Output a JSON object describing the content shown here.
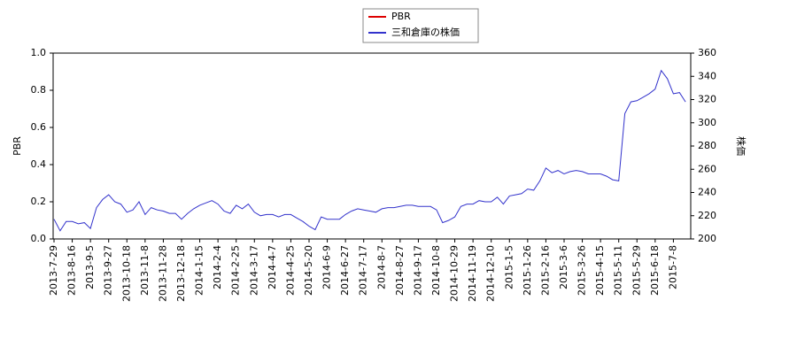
{
  "chart_data": {
    "type": "line",
    "categories": [
      "2013-7-29",
      null,
      null,
      "2013-8-16",
      null,
      null,
      "2013-9-5",
      null,
      null,
      "2013-9-27",
      null,
      null,
      "2013-10-18",
      null,
      null,
      "2013-11-8",
      null,
      null,
      "2013-11-28",
      null,
      null,
      "2013-12-18",
      null,
      null,
      "2014-1-15",
      null,
      null,
      "2014-2-4",
      null,
      null,
      "2014-2-25",
      null,
      null,
      "2014-3-17",
      null,
      null,
      "2014-4-7",
      null,
      null,
      "2014-4-25",
      null,
      null,
      "2014-5-20",
      null,
      null,
      "2014-6-9",
      null,
      null,
      "2014-6-27",
      null,
      null,
      "2014-7-17",
      null,
      null,
      "2014-8-7",
      null,
      null,
      "2014-8-27",
      null,
      null,
      "2014-9-17",
      null,
      null,
      "2014-10-8",
      null,
      null,
      "2014-10-29",
      null,
      null,
      "2014-11-19",
      null,
      null,
      "2014-12-10",
      null,
      null,
      "2015-1-5",
      null,
      null,
      "2015-1-26",
      null,
      null,
      "2015-2-16",
      null,
      null,
      "2015-3-6",
      null,
      null,
      "2015-3-26",
      null,
      null,
      "2015-4-15",
      null,
      null,
      "2015-5-11",
      null,
      null,
      "2015-5-29",
      null,
      null,
      "2015-6-18",
      null,
      null,
      "2015-7-8",
      null,
      null
    ],
    "series": [
      {
        "name": "PBR",
        "color": "#dd0000",
        "values": [
          null,
          null,
          null,
          null,
          null,
          null,
          null,
          null,
          null,
          null,
          null,
          null,
          null,
          null,
          null,
          null,
          null,
          null,
          null,
          null,
          null,
          null,
          null,
          null,
          null,
          null,
          null,
          null,
          null,
          null,
          null,
          null,
          null,
          null,
          null,
          null,
          null,
          null,
          null,
          null,
          null,
          null,
          null,
          null,
          null,
          null,
          null,
          null,
          null,
          null,
          null,
          null,
          null,
          null,
          null,
          null,
          null,
          null,
          null,
          null,
          null,
          null,
          null,
          null,
          null,
          null,
          null,
          null,
          null,
          null,
          null,
          null,
          null,
          null,
          null,
          null,
          null,
          null,
          null,
          null,
          null,
          null,
          null,
          null,
          null,
          null,
          null,
          null,
          null,
          null,
          null,
          null,
          null,
          null,
          null,
          null,
          null,
          null,
          null,
          null,
          null,
          null,
          null,
          null,
          null
        ]
      },
      {
        "name": "三和倉庫の株価",
        "color": "#3333cc",
        "axis": "y2",
        "values": [
          217,
          207,
          215,
          215,
          213,
          214,
          209,
          227,
          234,
          238,
          232,
          230,
          223,
          225,
          232,
          221,
          227,
          225,
          224,
          222,
          222,
          217,
          222,
          226,
          229,
          231,
          233,
          230,
          224,
          222,
          229,
          226,
          230,
          223,
          220,
          221,
          221,
          219,
          221,
          221,
          218,
          215,
          211,
          208,
          219,
          217,
          217,
          217,
          221,
          224,
          226,
          225,
          224,
          223,
          226,
          227,
          227,
          228,
          229,
          229,
          228,
          228,
          228,
          225,
          214,
          216,
          219,
          228,
          230,
          230,
          233,
          232,
          232,
          236,
          230,
          237,
          238,
          239,
          243,
          242,
          250,
          261,
          257,
          259,
          256,
          258,
          259,
          258,
          256,
          256,
          256,
          254,
          251,
          250,
          308,
          318,
          319,
          322,
          325,
          329,
          345,
          338,
          325,
          326,
          318
        ]
      }
    ],
    "ylabel": "PBR",
    "y2label": "株価",
    "ylim": [
      0,
      1
    ],
    "yticks": [
      {
        "value": 0,
        "label": "0.0"
      },
      0.2,
      0.4,
      0.6,
      0.8,
      {
        "value": 1,
        "label": "1.0"
      }
    ],
    "y2lim": [
      200,
      360
    ],
    "y2ticks": [
      200,
      220,
      240,
      260,
      280,
      300,
      320,
      340,
      360
    ],
    "legend": "top"
  }
}
